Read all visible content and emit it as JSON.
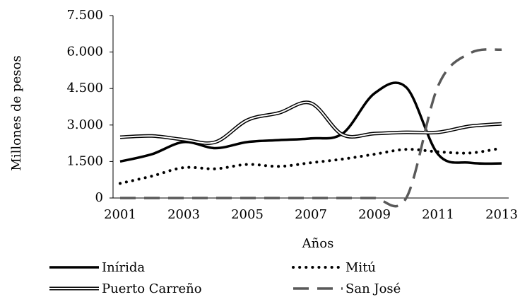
{
  "chart_data": {
    "type": "line",
    "x_label": "Años",
    "y_label": "Millones de pesos",
    "categories": [
      "2001",
      "2002",
      "2003",
      "2004",
      "2005",
      "2006",
      "2007",
      "2008",
      "2009",
      "2010",
      "2011",
      "2012",
      "2013"
    ],
    "xticks_shown": [
      0,
      2,
      4,
      6,
      8,
      10,
      12
    ],
    "ylim": [
      0,
      7500
    ],
    "yticks": [
      0,
      {
        "value": 1500,
        "label": "1.500"
      },
      {
        "value": 3000,
        "label": "3.000"
      },
      {
        "value": 4500,
        "label": "4.500"
      },
      {
        "value": 6000,
        "label": "6.000"
      },
      {
        "value": 7500,
        "label": "7.500"
      }
    ],
    "grid": false,
    "series": [
      {
        "name": "Inírida",
        "color": "#000000",
        "style": "solid",
        "values": [
          1500,
          1800,
          2300,
          2050,
          2300,
          2380,
          2450,
          2650,
          4300,
          4550,
          1800,
          1450,
          1420
        ]
      },
      {
        "name": "Mitú",
        "color": "#000000",
        "style": "dotted",
        "values": [
          600,
          900,
          1250,
          1200,
          1380,
          1300,
          1450,
          1600,
          1800,
          2000,
          1900,
          1850,
          2050
        ]
      },
      {
        "name": "Puerto Carreño",
        "color": "#000000",
        "style": "double",
        "values": [
          2500,
          2550,
          2400,
          2300,
          3200,
          3500,
          3900,
          2600,
          2650,
          2700,
          2700,
          2950,
          3050
        ]
      },
      {
        "name": "San José",
        "color": "#595959",
        "style": "dashed",
        "values": [
          0,
          0,
          0,
          0,
          0,
          0,
          0,
          0,
          0,
          0,
          4600,
          5950,
          6100
        ]
      }
    ]
  }
}
